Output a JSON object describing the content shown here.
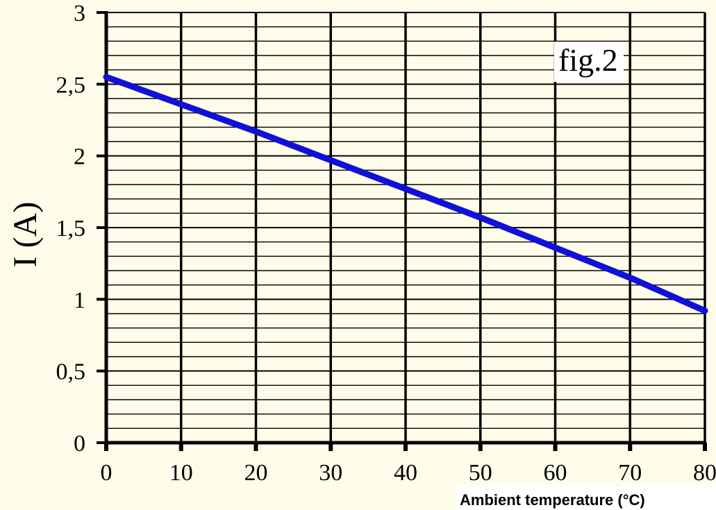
{
  "chart_data": {
    "type": "line",
    "xlabel": "Ambient temperature (°C)",
    "ylabel": "I (A)",
    "annotation": "fig.2",
    "xlim": [
      0,
      80
    ],
    "ylim": [
      0,
      3
    ],
    "x_ticks": [
      "0",
      "10",
      "20",
      "30",
      "40",
      "50",
      "60",
      "70",
      "80"
    ],
    "y_ticks": [
      "0",
      "0,5",
      "1",
      "1,5",
      "2",
      "2,5",
      "3"
    ],
    "grid": true,
    "series": [
      {
        "x": [
          0,
          10,
          20,
          30,
          40,
          50,
          60,
          70,
          80
        ],
        "y": [
          2.55,
          2.36,
          2.17,
          1.97,
          1.77,
          1.57,
          1.36,
          1.15,
          0.92
        ]
      }
    ],
    "colors": {
      "background": "#FFFDE9",
      "line": "#1010D8",
      "grid": "#000000"
    }
  }
}
